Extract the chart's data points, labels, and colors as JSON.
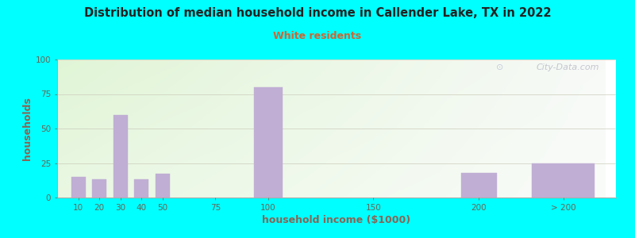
{
  "title": "Distribution of median household income in Callender Lake, TX in 2022",
  "subtitle": "White residents",
  "xlabel": "household income ($1000)",
  "ylabel": "households",
  "background_outer": "#00FFFF",
  "bar_color": "#c0aed4",
  "bar_edge_color": "#c0aed4",
  "title_color": "#222222",
  "subtitle_color": "#cc6633",
  "axis_label_color": "#886655",
  "tick_label_color": "#666655",
  "watermark": "City-Data.com",
  "categories": [
    "10",
    "20",
    "30",
    "40",
    "50",
    "75",
    "100",
    "150",
    "200",
    "> 200"
  ],
  "x_positions": [
    10,
    20,
    30,
    40,
    50,
    75,
    100,
    150,
    200,
    240
  ],
  "bar_widths": [
    8,
    8,
    8,
    8,
    8,
    12,
    16,
    20,
    20,
    35
  ],
  "values": [
    15,
    13,
    60,
    13,
    17,
    0,
    80,
    0,
    18,
    25
  ],
  "ylim": [
    0,
    100
  ],
  "yticks": [
    0,
    25,
    50,
    75,
    100
  ],
  "xtick_positions": [
    10,
    20,
    30,
    40,
    50,
    75,
    100,
    150,
    200,
    240
  ],
  "xtick_labels": [
    "10",
    "20",
    "30",
    "40",
    "50",
    "75",
    "100",
    "150",
    "200",
    "> 200"
  ],
  "figsize": [
    8.0,
    3.0
  ],
  "dpi": 100
}
